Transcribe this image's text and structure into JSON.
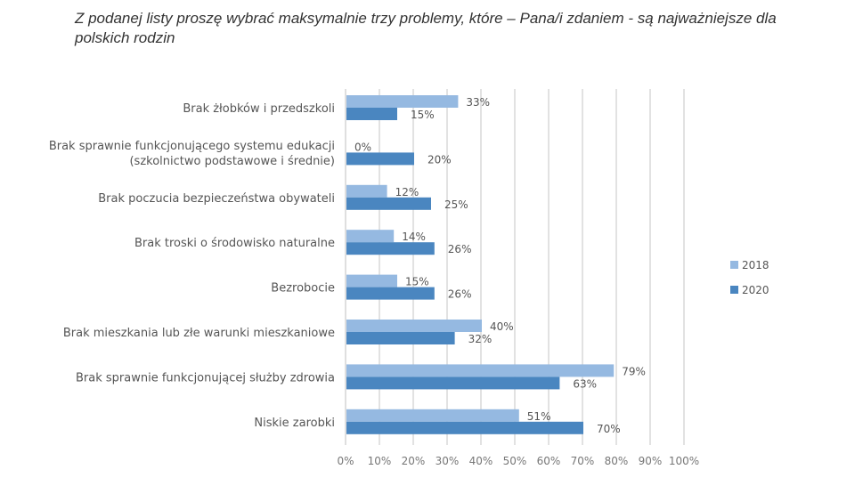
{
  "chart_data": {
    "type": "bar",
    "orientation": "horizontal",
    "title": "Z podanej listy proszę wybrać maksymalnie trzy problemy, które – Pana/i zdaniem - są najważniejsze dla polskich rodzin",
    "categories": [
      [
        "Brak żłobków i przedszkoli"
      ],
      [
        "Brak sprawnie funkcjonującego systemu edukacji",
        "(szkolnictwo podstawowe i średnie)"
      ],
      [
        "Brak poczucia bezpieczeństwa obywateli"
      ],
      [
        "Brak troski o środowisko naturalne"
      ],
      [
        "Bezrobocie"
      ],
      [
        "Brak mieszkania lub złe warunki mieszkaniowe"
      ],
      [
        "Brak sprawnie funkcjonującej służby zdrowia"
      ],
      [
        "Niskie zarobki"
      ]
    ],
    "series": [
      {
        "name": "2018",
        "color": "#95b9e1",
        "values": [
          33,
          0,
          12,
          14,
          15,
          40,
          79,
          51
        ]
      },
      {
        "name": "2020",
        "color": "#4a86c0",
        "values": [
          15,
          20,
          25,
          26,
          26,
          32,
          63,
          70
        ]
      }
    ],
    "xlim": [
      0,
      100
    ],
    "xticks": [
      "0%",
      "10%",
      "20%",
      "30%",
      "40%",
      "50%",
      "60%",
      "70%",
      "80%",
      "90%",
      "100%"
    ],
    "value_suffix": "%",
    "grid": "vertical",
    "legend": "right"
  }
}
